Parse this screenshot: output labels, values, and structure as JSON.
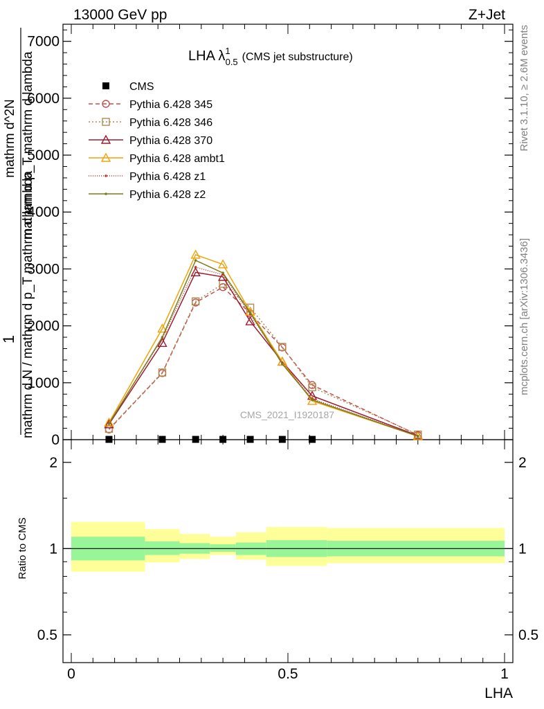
{
  "header": {
    "left": "13000 GeV pp",
    "right": "Z+Jet"
  },
  "side_text": {
    "rivet": "Rivet 3.1.10, ≥ 2.6M events",
    "mcplots": "mcplots.cern.ch [arXiv:1306.3436]"
  },
  "watermark": "CMS_2021_I1920187",
  "chart_data": [
    {
      "type": "line",
      "title": "LHA λ",
      "title_sup": "1",
      "title_sub": "0.5",
      "title_note": "(CMS jet substructure)",
      "ylabel_num": "1",
      "ylabel_den": "mathrm d N / mathrm d p_T mathrm d lambda",
      "ylabel_right_num": "mathrm d^2N",
      "ylabel_right_den": "mathrm d p_T mathrm d lambda",
      "xlim": [
        0,
        1
      ],
      "ylim": [
        0,
        7300
      ],
      "y_ticks": [
        0,
        1000,
        2000,
        3000,
        4000,
        5000,
        6000,
        7000
      ],
      "y_tick_labels": [
        "0",
        "1000",
        "2000",
        "3000",
        "4000",
        "5000",
        "6000",
        "7000"
      ],
      "legend_position": "top-left",
      "x": [
        0.087,
        0.21,
        0.287,
        0.35,
        0.413,
        0.487,
        0.556,
        0.8
      ],
      "cms": [
        5,
        5,
        5,
        5,
        5,
        5,
        5,
        null
      ],
      "series": [
        {
          "name": "Pythia 6.428 345",
          "color": "#c0504d",
          "dash": "6,4",
          "marker": "circle",
          "values": [
            180,
            1170,
            2410,
            2680,
            2220,
            1620,
            960,
            80
          ]
        },
        {
          "name": "Pythia 6.428 346",
          "color": "#b08a50",
          "dash": "2,3",
          "marker": "square",
          "values": [
            190,
            1180,
            2430,
            2740,
            2320,
            1630,
            920,
            90
          ]
        },
        {
          "name": "Pythia 6.428 370",
          "color": "#9b1b30",
          "dash": "",
          "marker": "triangle",
          "values": [
            270,
            1700,
            2940,
            2860,
            2080,
            1370,
            770,
            70
          ]
        },
        {
          "name": "Pythia 6.428 ambt1",
          "color": "#f0a30a",
          "dash": "",
          "marker": "triangle",
          "values": [
            300,
            1950,
            3250,
            3080,
            2250,
            1370,
            680,
            60
          ]
        },
        {
          "name": "Pythia 6.428 z1",
          "color": "#c0392b",
          "dash": "1,2",
          "marker": "dot",
          "values": [
            290,
            1780,
            3030,
            2900,
            2200,
            1350,
            720,
            60
          ]
        },
        {
          "name": "Pythia 6.428 z2",
          "color": "#7a7a1f",
          "dash": "",
          "marker": "dot",
          "values": [
            280,
            1800,
            3150,
            2930,
            2230,
            1330,
            700,
            60
          ]
        }
      ],
      "cms_name": "CMS"
    },
    {
      "type": "area",
      "ylabel": "Ratio to CMS",
      "xlabel": "LHA",
      "xlim": [
        0,
        1
      ],
      "ylim": [
        0.4,
        2.4
      ],
      "log_y": true,
      "y_ticks": [
        0.5,
        1,
        2
      ],
      "y_tick_labels": [
        "0.5",
        "1",
        "2"
      ],
      "x_ticks": [
        0,
        0.5,
        1
      ],
      "x_tick_labels": [
        "0",
        "0.5",
        "1"
      ],
      "bins": [
        0,
        0.17,
        0.25,
        0.32,
        0.38,
        0.45,
        0.59,
        1.0
      ],
      "inner_band": [
        [
          0.91,
          1.1
        ],
        [
          0.95,
          1.06
        ],
        [
          0.96,
          1.045
        ],
        [
          0.975,
          1.035
        ],
        [
          0.95,
          1.05
        ],
        [
          0.935,
          1.07
        ],
        [
          0.94,
          1.065
        ]
      ],
      "outer_band": [
        [
          0.83,
          1.24
        ],
        [
          0.895,
          1.17
        ],
        [
          0.92,
          1.125
        ],
        [
          0.95,
          1.1
        ],
        [
          0.915,
          1.14
        ],
        [
          0.87,
          1.19
        ],
        [
          0.89,
          1.18
        ]
      ]
    }
  ]
}
